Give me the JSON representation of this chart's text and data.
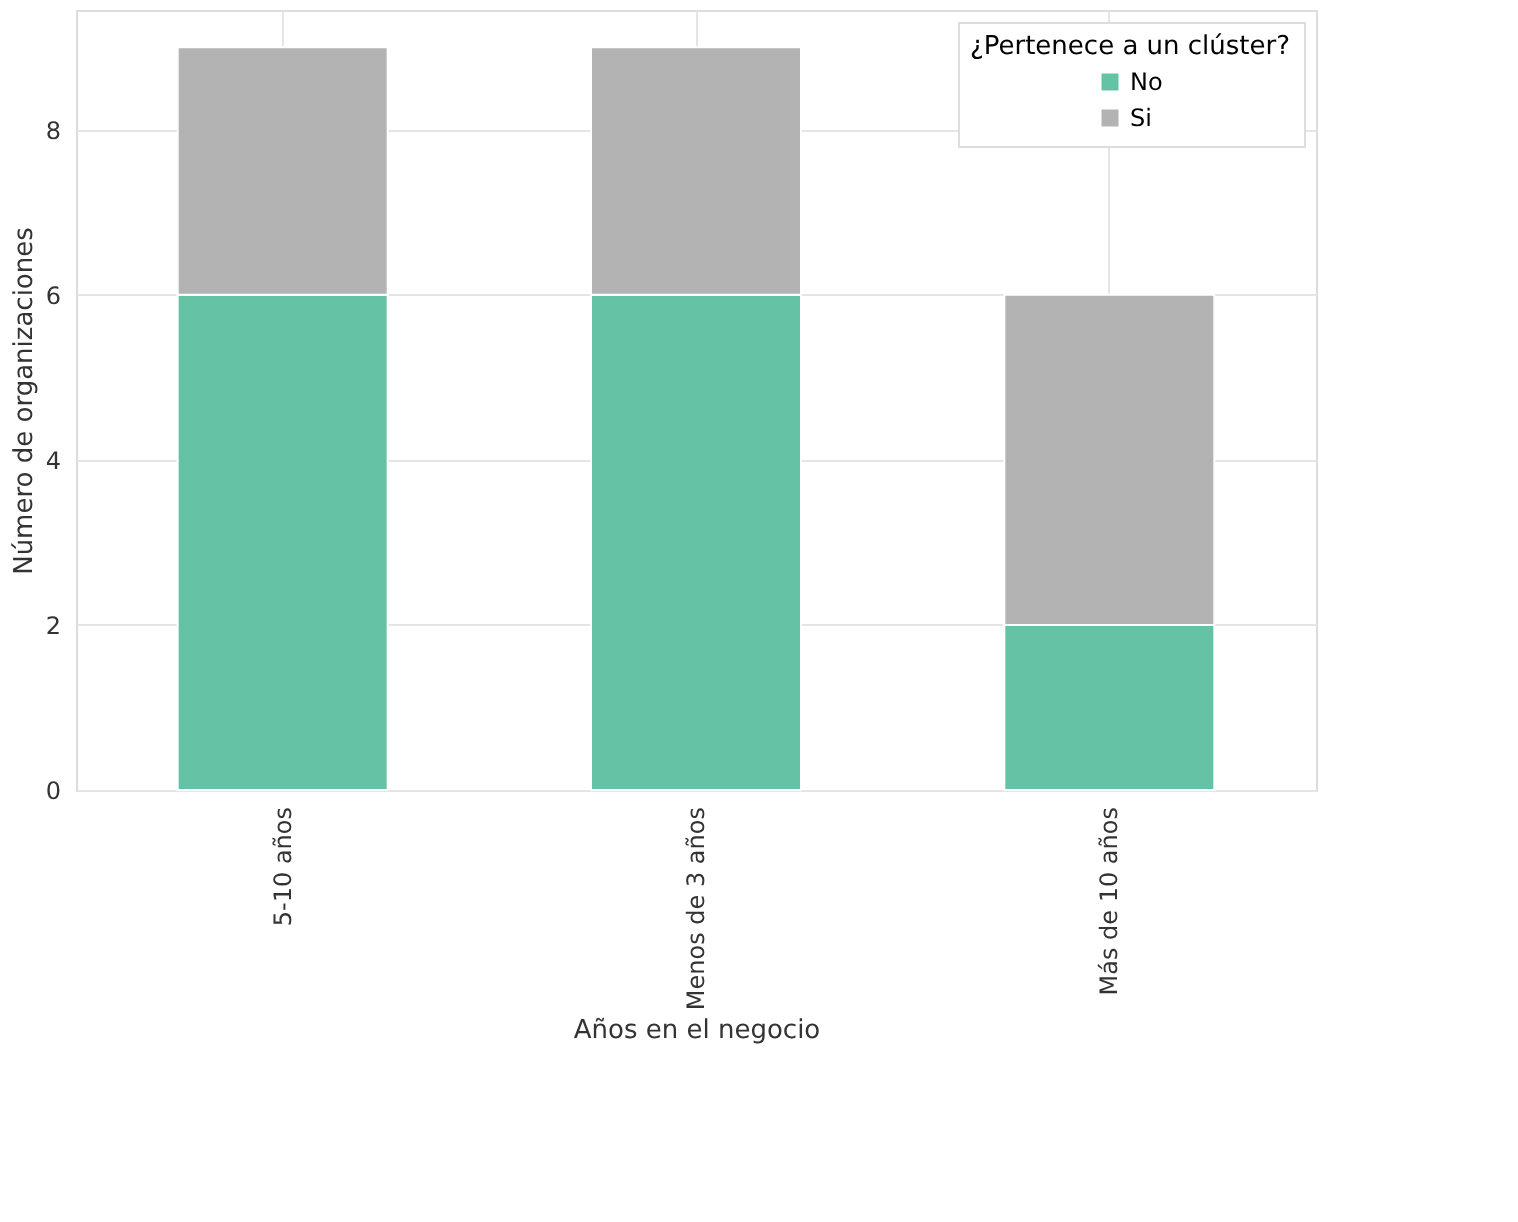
{
  "chart_data": {
    "type": "bar",
    "stacked": true,
    "categories": [
      "5-10 años",
      "Menos de 3 años",
      "Más de 10 años"
    ],
    "series": [
      {
        "name": "No",
        "color": "#66c2a5",
        "values": [
          6,
          6,
          2
        ]
      },
      {
        "name": "Si",
        "color": "#b3b3b3",
        "values": [
          3,
          3,
          4
        ]
      }
    ],
    "xlabel": "Años en el negocio",
    "ylabel": "Número de organizaciones",
    "legend_title": "¿Pertenece a un clúster?",
    "ylim": [
      0,
      9.45
    ],
    "yticks": [
      0,
      2,
      4,
      6,
      8
    ],
    "grid": true,
    "legend": "top right"
  }
}
